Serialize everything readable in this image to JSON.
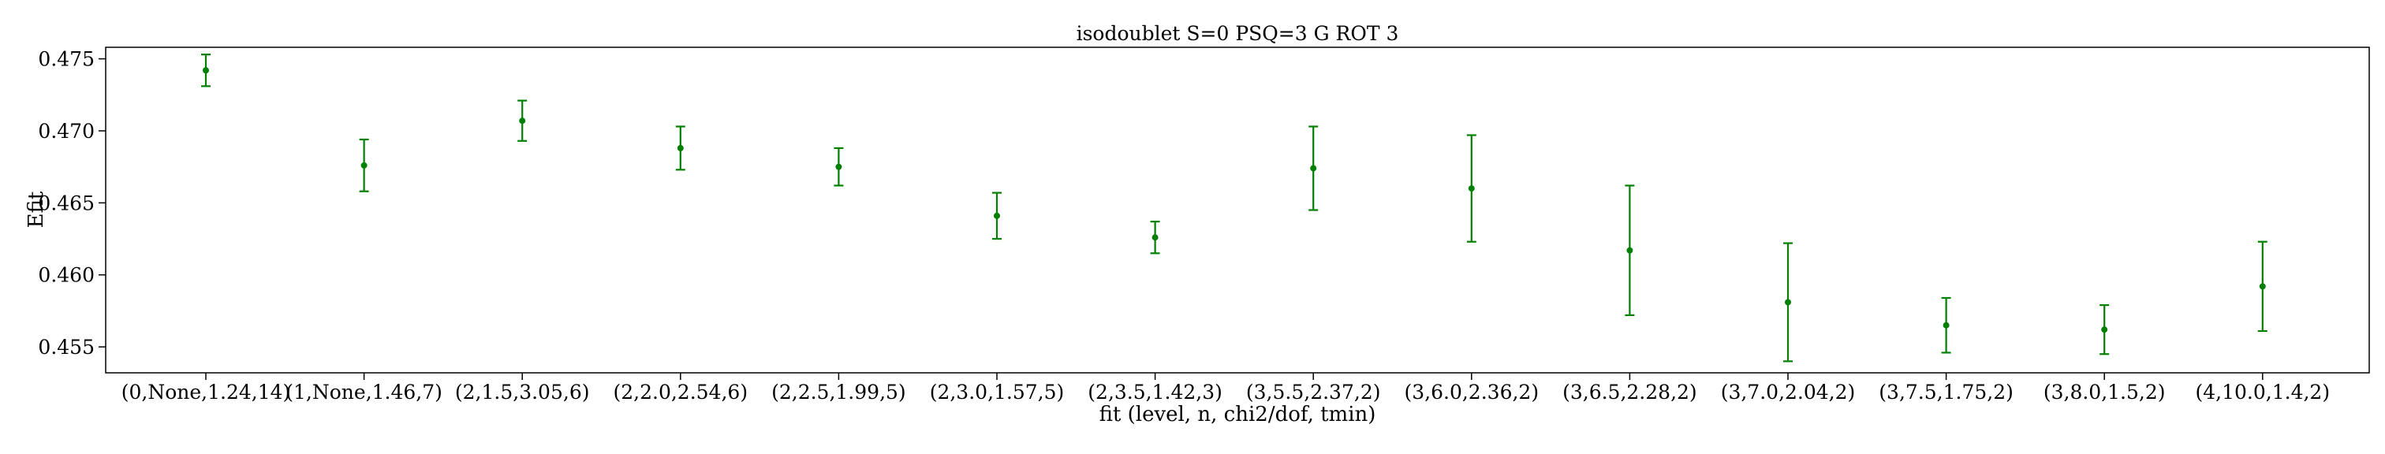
{
  "chart_data": {
    "type": "scatter",
    "title": "isodoublet S=0 PSQ=3 G ROT 3",
    "xlabel": "fit (level, n, chi2/dof, tmin)",
    "ylabel": "Efit",
    "categories": [
      "(0,None,1.24,14)",
      "(1,None,1.46,7)",
      "(2,1.5,3.05,6)",
      "(2,2.0,2.54,6)",
      "(2,2.5,1.99,5)",
      "(2,3.0,1.57,5)",
      "(2,3.5,1.42,3)",
      "(3,5.5,2.37,2)",
      "(3,6.0,2.36,2)",
      "(3,6.5,2.28,2)",
      "(3,7.0,2.04,2)",
      "(3,7.5,1.75,2)",
      "(3,8.0,1.5,2)",
      "(4,10.0,1.4,2)"
    ],
    "values": [
      0.4742,
      0.4676,
      0.4707,
      0.4688,
      0.4675,
      0.4641,
      0.4626,
      0.4674,
      0.466,
      0.4617,
      0.4581,
      0.4565,
      0.4562,
      0.4592
    ],
    "errors": [
      0.0011,
      0.0018,
      0.0014,
      0.0015,
      0.0013,
      0.0016,
      0.0011,
      0.0029,
      0.0037,
      0.0045,
      0.0041,
      0.0019,
      0.0017,
      0.0031
    ],
    "yticks": [
      "0.455",
      "0.460",
      "0.465",
      "0.470",
      "0.475"
    ],
    "ylim": [
      0.4532,
      0.4758
    ],
    "color": "#008000",
    "grid": false,
    "legend": "none"
  }
}
